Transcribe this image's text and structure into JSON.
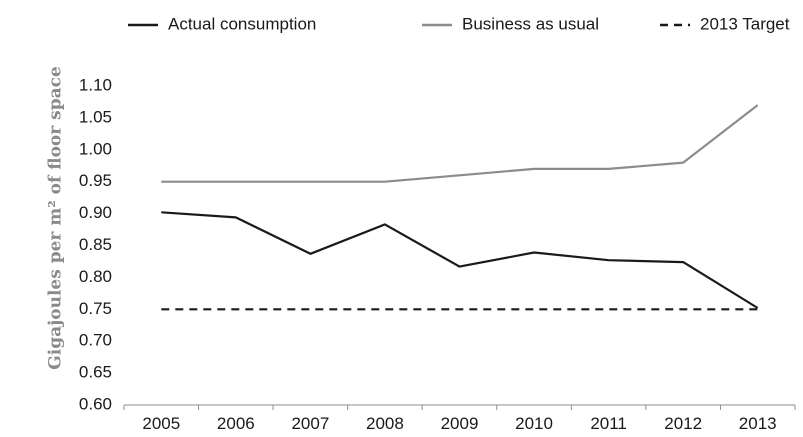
{
  "chart_data": {
    "type": "line",
    "title": "",
    "xlabel": "",
    "ylabel": "Gigajoules per m² of floor space",
    "categories": [
      "2005",
      "2006",
      "2007",
      "2008",
      "2009",
      "2010",
      "2011",
      "2012",
      "2013"
    ],
    "y_ticks": [
      "0.60",
      "0.65",
      "0.70",
      "0.75",
      "0.80",
      "0.85",
      "0.90",
      "0.95",
      "1.00",
      "1.05",
      "1.10"
    ],
    "ylim": [
      0.6,
      1.1
    ],
    "grid": false,
    "legend_position": "top",
    "series": [
      {
        "name": "Actual consumption",
        "color": "#1a1a1a",
        "style": "solid",
        "values": [
          0.902,
          0.894,
          0.837,
          0.883,
          0.817,
          0.839,
          0.827,
          0.824,
          0.752
        ]
      },
      {
        "name": "Business as usual",
        "color": "#8c8c8c",
        "style": "solid",
        "values": [
          0.95,
          0.95,
          0.95,
          0.95,
          0.96,
          0.97,
          0.97,
          0.98,
          1.07
        ]
      },
      {
        "name": "2013 Target",
        "color": "#1a1a1a",
        "style": "dashed",
        "values": [
          0.75,
          0.75,
          0.75,
          0.75,
          0.75,
          0.75,
          0.75,
          0.75,
          0.75
        ]
      }
    ]
  }
}
